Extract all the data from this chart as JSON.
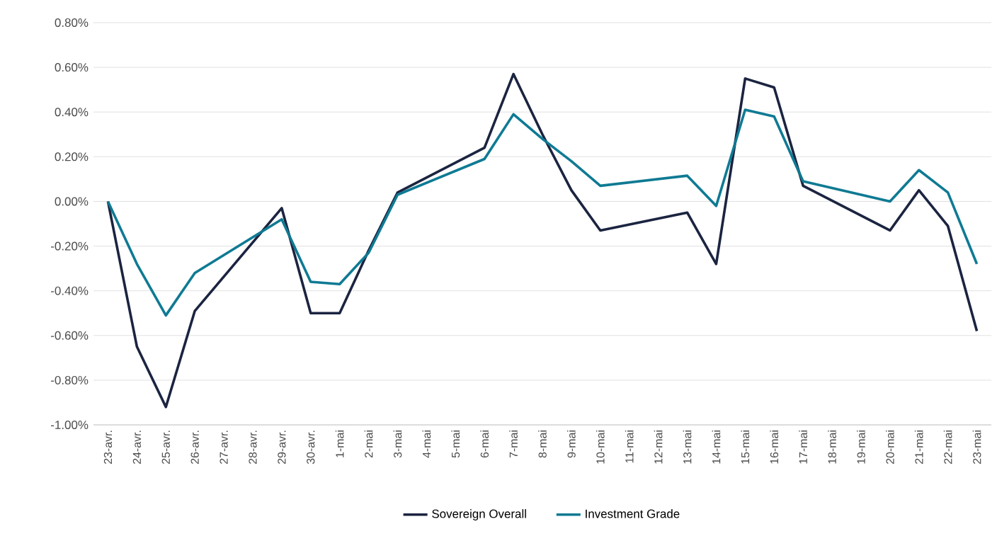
{
  "chart_data": {
    "type": "line",
    "categories": [
      "23-avr.",
      "24-avr.",
      "25-avr.",
      "26-avr.",
      "27-avr.",
      "28-avr.",
      "29-avr.",
      "30-avr.",
      "1-mai",
      "2-mai",
      "3-mai",
      "4-mai",
      "5-mai",
      "6-mai",
      "7-mai",
      "8-mai",
      "9-mai",
      "10-mai",
      "11-mai",
      "12-mai",
      "13-mai",
      "14-mai",
      "15-mai",
      "16-mai",
      "17-mai",
      "18-mai",
      "19-mai",
      "20-mai",
      "21-mai",
      "22-mai",
      "23-mai"
    ],
    "series": [
      {
        "name": "Sovereign Overall",
        "color": "#1b2440",
        "values": [
          0,
          -0.65,
          -0.92,
          -0.49,
          null,
          null,
          -0.03,
          -0.5,
          -0.5,
          -0.22,
          0.04,
          null,
          null,
          0.24,
          0.57,
          0.3,
          0.05,
          -0.13,
          null,
          null,
          -0.05,
          -0.28,
          0.55,
          0.51,
          0.07,
          null,
          null,
          -0.13,
          0.05,
          -0.11,
          -0.58
        ]
      },
      {
        "name": "Investment Grade",
        "color": "#0f7a93",
        "values": [
          0,
          -0.28,
          -0.51,
          -0.32,
          null,
          null,
          -0.08,
          -0.36,
          -0.37,
          -0.23,
          0.03,
          null,
          null,
          0.19,
          0.39,
          0.28,
          0.18,
          0.07,
          null,
          null,
          0.115,
          -0.02,
          0.41,
          0.38,
          0.09,
          null,
          null,
          0.0,
          0.14,
          0.04,
          -0.28
        ]
      }
    ],
    "ylim": [
      -1.0,
      0.8
    ],
    "yticks": [
      {
        "value": -1.0,
        "label": "-1.00%"
      },
      {
        "value": -0.8,
        "label": "-0.80%"
      },
      {
        "value": -0.6,
        "label": "-0.60%"
      },
      {
        "value": -0.4,
        "label": "-0.40%"
      },
      {
        "value": -0.2,
        "label": "-0.20%"
      },
      {
        "value": 0.0,
        "label": "0.00%"
      },
      {
        "value": 0.2,
        "label": "0.20%"
      },
      {
        "value": 0.4,
        "label": "0.40%"
      },
      {
        "value": 0.6,
        "label": "0.60%"
      },
      {
        "value": 0.8,
        "label": "0.80%"
      }
    ],
    "grid": "y",
    "legend": "bottom",
    "marker": "none",
    "line_style": "solid"
  }
}
